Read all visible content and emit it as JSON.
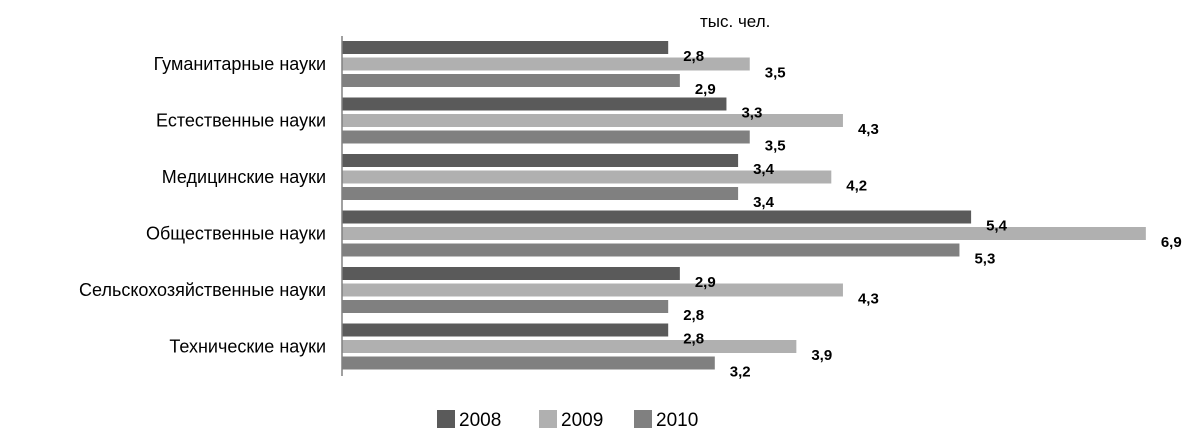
{
  "chart_data": {
    "type": "bar",
    "orientation": "horizontal",
    "unit": "тыс.  чел.",
    "categories": [
      "Гуманитарные науки",
      "Естественные науки",
      "Медицинские науки",
      "Общественные науки",
      "Сельскохозяйственные науки",
      "Технические науки"
    ],
    "series": [
      {
        "name": "2008",
        "color": "#5a5a5a",
        "values": [
          2.8,
          3.3,
          3.4,
          5.4,
          2.9,
          2.8
        ],
        "labels": [
          "2,8",
          "3,3",
          "3,4",
          "5,4",
          "2,9",
          "2,8"
        ]
      },
      {
        "name": "2009",
        "color": "#b0b0b0",
        "values": [
          3.5,
          4.3,
          4.2,
          6.9,
          4.3,
          3.9
        ],
        "labels": [
          "3,5",
          "4,3",
          "4,2",
          "6,9",
          "4,3",
          "3,9"
        ]
      },
      {
        "name": "2010",
        "color": "#808080",
        "values": [
          2.9,
          3.5,
          3.4,
          5.3,
          2.8,
          3.2
        ],
        "labels": [
          "2,9",
          "3,5",
          "3,4",
          "5,3",
          "2,8",
          "3,2"
        ]
      }
    ],
    "xlim": [
      0,
      6.9
    ],
    "grid": false,
    "legend_position": "bottom"
  }
}
